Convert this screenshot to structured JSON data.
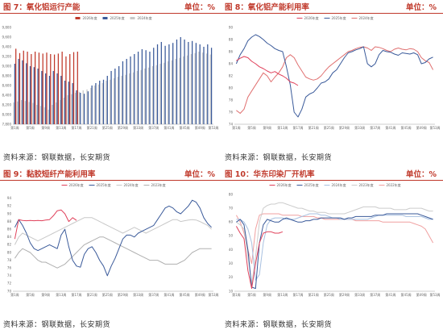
{
  "panels": [
    {
      "title": "图 7：氧化铝运行产能",
      "unit": "单位：%",
      "source": "资料来源：钢联数据，长安期货"
    },
    {
      "title": "图 8：氧化铝产能利用率",
      "unit": "单位：%",
      "source": "资料来源：钢联数据，长安期货"
    },
    {
      "title": "图 9：黏胶短纤产能利用率",
      "unit": "单位：%",
      "source": "资料来源：钢联数据，长安期货"
    },
    {
      "title": "图 10：华东印染厂开机率",
      "unit": "单位：%",
      "source": "资料来源：钢联数据，长安期货"
    }
  ],
  "chart_data": [
    {
      "type": "bar",
      "title": "图 7：氧化铝运行产能",
      "ylim": [
        7800,
        9800
      ],
      "yticks": [
        7800,
        8000,
        8200,
        8400,
        8600,
        8800,
        9000,
        9200,
        9400,
        9600,
        9800
      ],
      "xtick_labels": [
        "第1周",
        "第5周",
        "第9周",
        "第13周",
        "第17周",
        "第21周",
        "第25周",
        "第29周",
        "第33周",
        "第37周",
        "第41周",
        "第45周",
        "第49周",
        "第53周"
      ],
      "grid": false,
      "legend_position": "top-center",
      "colors": {
        "2026年度": "#c0392b",
        "2025年度": "#3a5a9a",
        "2024年度": "#c9c9c9"
      },
      "series": [
        {
          "name": "2026年度",
          "values": [
            9360,
            9270,
            9320,
            9300,
            9250,
            9300,
            9280,
            9260,
            9280,
            9250,
            9240,
            9260,
            9300,
            9200,
            9250,
            9290,
            9300
          ]
        },
        {
          "name": "2025年度",
          "values": [
            9050,
            9150,
            9120,
            9060,
            9000,
            8980,
            8950,
            8900,
            8850,
            8800,
            8900,
            8850,
            8800,
            8700,
            8680,
            8650,
            8500,
            8450,
            8430,
            8480,
            8600,
            8650,
            8700,
            8720,
            8800,
            8900,
            8950,
            9000,
            9100,
            9150,
            9200,
            9250,
            9300,
            9350,
            9330,
            9300,
            9380,
            9450,
            9500,
            9420,
            9450,
            9480,
            9550,
            9600,
            9550,
            9500,
            9520,
            9480,
            9450,
            9400,
            9450,
            9380
          ]
        },
        {
          "name": "2024年度",
          "values": [
            8250,
            8270,
            8300,
            8280,
            8260,
            8240,
            8200,
            8180,
            8150,
            8100,
            8200,
            8250,
            8300,
            8350,
            8400,
            8420,
            8450,
            8470,
            8500,
            8520,
            8550,
            8600,
            8620,
            8650,
            8700,
            8720,
            8750,
            8780,
            8800,
            8820,
            8850,
            8870,
            8900,
            8920,
            8950,
            8970,
            9000,
            9020,
            9050,
            9070,
            9100,
            9120,
            9150,
            9170,
            9200,
            9220,
            9250,
            9270,
            9300,
            9280,
            9260,
            9240
          ]
        }
      ]
    },
    {
      "type": "line",
      "title": "图 8：氧化铝产能利用率",
      "ylim": [
        74,
        90
      ],
      "yticks": [
        74,
        76,
        78,
        80,
        82,
        84,
        86,
        88,
        90
      ],
      "xtick_labels": [
        "第1周",
        "第5周",
        "第9周",
        "第13周",
        "第17周",
        "第21周",
        "第25周",
        "第29周",
        "第33周",
        "第37周",
        "第41周",
        "第45周",
        "第49周",
        "第53周"
      ],
      "grid": false,
      "legend_position": "top-center",
      "colors": {
        "2026年度": "#e0405a",
        "2025年度": "#3a5a9a",
        "2024年度": "#e07070"
      },
      "series": [
        {
          "name": "2026年度",
          "values": [
            84.5,
            84.9,
            85.2,
            85.0,
            84.4,
            84.0,
            83.5,
            83.2,
            82.8,
            82.5,
            82.7,
            82.3,
            82.0,
            81.6,
            81.0,
            80.8,
            80.4
          ]
        },
        {
          "name": "2025年度",
          "values": [
            84.0,
            85.5,
            86.5,
            87.8,
            88.4,
            88.8,
            88.5,
            88.0,
            87.4,
            87.0,
            86.5,
            86.2,
            86.0,
            83.5,
            80.5,
            76.0,
            75.2,
            76.5,
            78.5,
            79.0,
            79.3,
            80.0,
            80.8,
            81.0,
            81.5,
            82.5,
            83.0,
            84.0,
            85.0,
            85.8,
            86.0,
            86.3,
            86.5,
            86.8,
            84.0,
            83.5,
            84.0,
            85.5,
            86.2,
            86.0,
            85.9,
            85.6,
            85.4,
            85.8,
            85.7,
            85.6,
            85.8,
            85.5,
            84.0,
            84.2,
            84.8,
            85.1
          ]
        },
        {
          "name": "2024年度",
          "values": [
            76.3,
            75.8,
            76.5,
            78.5,
            79.5,
            80.5,
            81.5,
            82.5,
            82.0,
            81.0,
            81.8,
            82.5,
            83.5,
            85.0,
            85.5,
            85.0,
            83.8,
            82.8,
            81.8,
            81.5,
            81.3,
            81.5,
            82.0,
            82.8,
            83.5,
            84.0,
            84.5,
            85.0,
            85.5,
            86.0,
            86.2,
            86.5,
            86.7,
            86.8,
            86.6,
            86.2,
            86.8,
            86.7,
            86.5,
            86.2,
            86.0,
            86.4,
            86.6,
            86.4,
            86.3,
            86.5,
            86.4,
            86.0,
            85.0,
            84.5,
            84.2,
            83.0
          ]
        }
      ]
    },
    {
      "type": "line",
      "title": "图 9：黏胶短纤产能利用率",
      "ylim": [
        70,
        95
      ],
      "yticks": [
        70,
        72,
        74,
        76,
        78,
        80,
        82,
        84,
        86,
        88,
        90,
        92,
        94
      ],
      "xtick_labels": [
        "第1周",
        "第5周",
        "第9周",
        "第13周",
        "第17周",
        "第21周",
        "第25周",
        "第29周",
        "第33周",
        "第37周",
        "第41周",
        "第45周",
        "第49周",
        "第53周"
      ],
      "grid": false,
      "legend_position": "top-center",
      "colors": {
        "2026年度": "#e0405a",
        "2025年度": "#3a5a9a",
        "2024年度": "#c8c8c8",
        "2023年度": "#b0b0b0"
      },
      "series": [
        {
          "name": "2026年度",
          "values": [
            83.5,
            88.5,
            88.3,
            88.2,
            88.3,
            88.2,
            88.3,
            88.2,
            88.4,
            88.5,
            89.5,
            90.8,
            91.0,
            90.0,
            88.0,
            89.0,
            88.3
          ]
        },
        {
          "name": "2025年度",
          "values": [
            86.5,
            88.5,
            87.0,
            85.0,
            82.5,
            81.0,
            80.5,
            81.0,
            81.5,
            82.0,
            81.5,
            81.0,
            84.5,
            86.0,
            81.5,
            78.0,
            76.5,
            76.2,
            79.5,
            81.0,
            81.5,
            80.0,
            78.0,
            76.5,
            74.0,
            76.5,
            78.5,
            81.0,
            83.5,
            84.5,
            84.5,
            84.0,
            85.0,
            85.5,
            86.0,
            86.5,
            87.0,
            88.5,
            90.0,
            91.5,
            92.0,
            91.5,
            90.5,
            90.0,
            91.0,
            92.0,
            93.5,
            93.0,
            91.5,
            89.0,
            87.5,
            86.5
          ]
        },
        {
          "name": "2024年度",
          "values": [
            82.0,
            84.0,
            85.0,
            84.5,
            84.0,
            83.5,
            83.0,
            83.5,
            84.0,
            84.5,
            85.0,
            85.5,
            86.0,
            86.5,
            87.0,
            87.5,
            88.0,
            88.5,
            89.0,
            89.0,
            89.0,
            88.5,
            88.0,
            87.5,
            87.0,
            86.5,
            86.0,
            85.5,
            85.0,
            85.5,
            86.0,
            86.5,
            86.0,
            85.5,
            85.0,
            85.5,
            86.0,
            86.5,
            87.0,
            87.5,
            88.0,
            88.5,
            88.5,
            88.0,
            88.2,
            88.4,
            88.5,
            88.4,
            88.0,
            87.5,
            87.0,
            86.0
          ]
        },
        {
          "name": "2023年度",
          "values": [
            78.5,
            80.0,
            81.0,
            80.5,
            80.0,
            79.0,
            78.0,
            77.5,
            77.5,
            77.0,
            76.5,
            76.0,
            76.5,
            77.0,
            78.0,
            79.0,
            80.0,
            81.0,
            82.0,
            82.5,
            83.0,
            83.5,
            84.0,
            84.0,
            83.5,
            83.0,
            82.5,
            82.0,
            81.5,
            81.0,
            80.5,
            80.0,
            79.5,
            79.0,
            78.5,
            78.0,
            78.0,
            78.0,
            77.5,
            77.0,
            77.0,
            77.0,
            77.0,
            77.5,
            78.0,
            79.0,
            80.0,
            80.5,
            81.0,
            81.0,
            81.0,
            81.0
          ]
        }
      ]
    },
    {
      "type": "line",
      "title": "图 10：华东印染厂开机率",
      "ylim": [
        10,
        80
      ],
      "yticks": [
        10,
        20,
        30,
        40,
        50,
        60,
        70,
        80
      ],
      "xtick_labels": [
        "第1周",
        "第5周",
        "第9周",
        "第13周",
        "第17周",
        "第21周",
        "第25周",
        "第29周",
        "第33周",
        "第37周",
        "第41周",
        "第45周",
        "第49周",
        "第53周"
      ],
      "grid": false,
      "legend_position": "top-center",
      "colors": {
        "2026年度": "#e0405a",
        "2025年度": "#3a5a9a",
        "2024年度": "#a8c0e0",
        "2023年度": "#cccccc",
        "2022年度": "#f0a0a0"
      },
      "series": [
        {
          "name": "2026年度",
          "values": [
            57,
            52,
            48,
            25,
            12,
            30,
            45,
            52,
            53,
            53,
            52,
            52,
            53
          ]
        },
        {
          "name": "2025年度",
          "values": [
            60,
            62,
            58,
            40,
            13,
            12,
            45,
            58,
            62,
            61,
            60,
            60,
            62,
            63,
            62,
            61,
            60,
            60,
            61,
            61,
            62,
            62,
            63,
            63,
            63,
            63,
            63,
            63,
            62,
            63,
            63,
            64,
            64,
            64,
            64,
            64,
            65,
            65,
            65,
            66,
            66,
            66,
            66,
            66,
            66,
            66,
            66,
            66,
            65,
            64,
            63,
            62
          ]
        },
        {
          "name": "2024年度",
          "values": [
            62,
            62,
            60,
            55,
            45,
            18,
            22,
            45,
            58,
            62,
            63,
            63,
            63,
            62,
            62,
            62,
            63,
            64,
            65,
            66,
            66,
            66,
            65,
            65,
            64,
            63,
            63,
            62,
            62,
            62,
            62,
            62,
            62,
            62,
            62,
            63,
            64,
            65,
            65,
            65,
            65,
            65,
            65,
            65,
            64,
            64,
            64,
            64,
            64,
            63,
            62,
            62
          ]
        },
        {
          "name": "2023年度",
          "values": [
            60,
            58,
            55,
            35,
            15,
            35,
            60,
            70,
            72,
            73,
            73,
            74,
            74,
            73,
            72,
            71,
            70,
            70,
            69,
            68,
            68,
            67,
            67,
            67,
            66,
            66,
            66,
            66,
            66,
            67,
            68,
            69,
            70,
            71,
            71,
            71,
            71,
            70,
            70,
            70,
            70,
            69,
            69,
            69,
            69,
            70,
            70,
            70,
            70,
            69,
            68,
            68
          ]
        },
        {
          "name": "2022年度",
          "values": [
            65,
            60,
            52,
            40,
            30,
            55,
            65,
            66,
            66,
            66,
            66,
            66,
            65,
            65,
            65,
            65,
            65,
            64,
            64,
            64,
            64,
            63,
            63,
            62,
            62,
            62,
            62,
            62,
            62,
            62,
            62,
            61,
            61,
            61,
            61,
            61,
            61,
            61,
            60,
            60,
            60,
            60,
            60,
            60,
            60,
            60,
            59,
            58,
            57,
            55,
            50,
            45
          ]
        }
      ]
    }
  ]
}
